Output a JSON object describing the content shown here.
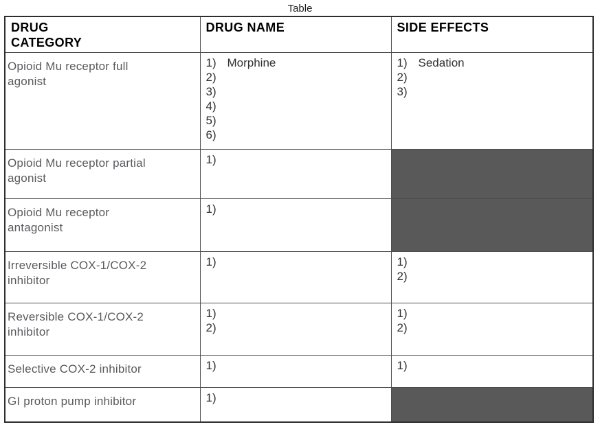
{
  "title": "Table",
  "colors": {
    "filled_cell": "#595959",
    "category_text": "#595a5e",
    "list_text": "#2e3033",
    "header_text": "#000000"
  },
  "table": {
    "headers": [
      "DRUG\nCATEGORY",
      "DRUG NAME",
      "SIDE EFFECTS"
    ],
    "rows": [
      {
        "category": "Opioid Mu receptor full\nagonist",
        "drug_names": [
          {
            "num": "1)",
            "label": "Morphine"
          },
          {
            "num": "2)",
            "label": ""
          },
          {
            "num": "3)",
            "label": ""
          },
          {
            "num": "4)",
            "label": ""
          },
          {
            "num": "5)",
            "label": ""
          },
          {
            "num": "6)",
            "label": ""
          }
        ],
        "side_effects": {
          "filled": false,
          "items": [
            {
              "num": "1)",
              "label": "Sedation"
            },
            {
              "num": "2)",
              "label": ""
            },
            {
              "num": "3)",
              "label": ""
            }
          ]
        }
      },
      {
        "category": "Opioid Mu receptor partial\nagonist",
        "drug_names": [
          {
            "num": "1)",
            "label": ""
          }
        ],
        "side_effects": {
          "filled": true,
          "items": []
        }
      },
      {
        "category": "Opioid Mu receptor\nantagonist",
        "drug_names": [
          {
            "num": "1)",
            "label": ""
          }
        ],
        "side_effects": {
          "filled": true,
          "items": []
        }
      },
      {
        "category": "Irreversible COX-1/COX-2\ninhibitor",
        "drug_names": [
          {
            "num": "1)",
            "label": ""
          }
        ],
        "side_effects": {
          "filled": false,
          "items": [
            {
              "num": "1)",
              "label": ""
            },
            {
              "num": "2)",
              "label": ""
            }
          ]
        }
      },
      {
        "category": "Reversible COX-1/COX-2\ninhibitor",
        "drug_names": [
          {
            "num": "1)",
            "label": ""
          },
          {
            "num": "2)",
            "label": ""
          }
        ],
        "side_effects": {
          "filled": false,
          "items": [
            {
              "num": "1)",
              "label": ""
            },
            {
              "num": "2)",
              "label": ""
            }
          ]
        }
      },
      {
        "category": "Selective COX-2 inhibitor",
        "drug_names": [
          {
            "num": "1)",
            "label": ""
          }
        ],
        "side_effects": {
          "filled": false,
          "items": [
            {
              "num": "1)",
              "label": ""
            }
          ]
        }
      },
      {
        "category": "GI proton pump inhibitor",
        "drug_names": [
          {
            "num": "1)",
            "label": ""
          }
        ],
        "side_effects": {
          "filled": true,
          "items": []
        }
      }
    ]
  }
}
